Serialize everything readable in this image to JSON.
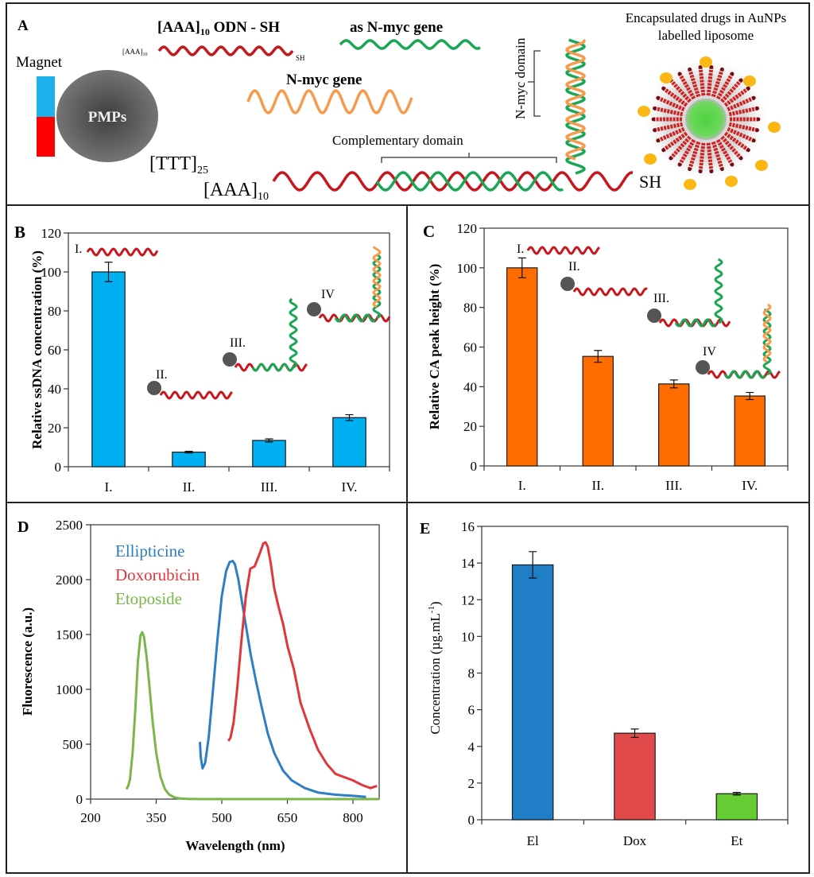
{
  "figure": {
    "panelA": {
      "label": "A",
      "title_odn": "[AAA]",
      "title_odn_sub": "10",
      "title_odn_rest": " ODN - SH",
      "small_odn_prefix": "[AAA]",
      "small_odn_sub": "10",
      "small_sh": "SH",
      "as_nmyc_label": "as N-myc gene",
      "nmyc_label": "N-myc gene",
      "magnet_label": "Magnet",
      "pmps_label": "PMPs",
      "ttt_label": "[TTT]",
      "ttt_sub": "25",
      "aaa_label": "[AAA]",
      "aaa_sub": "10",
      "complementary_label": "Complementary domain",
      "nmyc_domain_label": "N-myc domain",
      "sh_label": "SH",
      "liposome_label_line1": "Encapsulated drugs in AuNPs",
      "liposome_label_line2": "labelled liposome",
      "colors": {
        "red_strand": "#c8161d",
        "green_strand": "#1aa655",
        "orange_strand": "#f79a4b",
        "magnet_blue": "#1fb1ec",
        "magnet_red": "#ff0000",
        "pmp_gray": "#6b6b6b",
        "aunp_gold": "#fbb713",
        "core_green": "#4cd33f"
      }
    },
    "annotations": {
      "B": [
        "I.",
        "II.",
        "III.",
        "IV"
      ],
      "C": [
        "I.",
        "II.",
        "III.",
        "IV"
      ]
    }
  },
  "chart_data": [
    {
      "panel": "B",
      "type": "bar",
      "title": "",
      "categories": [
        "I.",
        "II.",
        "III.",
        "IV."
      ],
      "values": [
        100,
        7.5,
        13.5,
        25.2
      ],
      "errors": [
        5.0,
        0.4,
        0.8,
        1.5
      ],
      "xlabel": "",
      "ylabel": "Relative ssDNA concentration (%)",
      "ylim": [
        0,
        120
      ],
      "yticks": [
        0,
        20,
        40,
        60,
        80,
        100,
        120
      ],
      "bar_color": "#00b0f0",
      "grid": false
    },
    {
      "panel": "C",
      "type": "bar",
      "title": "",
      "categories": [
        "I.",
        "II.",
        "III.",
        "IV."
      ],
      "values": [
        100,
        55.3,
        41.4,
        35.3
      ],
      "errors": [
        5.0,
        3.0,
        2.0,
        1.8
      ],
      "xlabel": "",
      "ylabel": "Relative CA peak height (%)",
      "ylim": [
        0,
        120
      ],
      "yticks": [
        0,
        20,
        40,
        60,
        80,
        100,
        120
      ],
      "bar_color": "#ff6d00",
      "grid": false
    },
    {
      "panel": "D",
      "type": "line",
      "title": "",
      "xlabel": "Wavelength (nm)",
      "ylabel": "Fluorescence (a.u.)",
      "xlim": [
        200,
        860
      ],
      "ylim": [
        0,
        2500
      ],
      "xticks": [
        200,
        350,
        500,
        650,
        800
      ],
      "yticks": [
        0,
        500,
        1000,
        1500,
        2000,
        2500
      ],
      "legend": "top-left",
      "grid": false,
      "series": [
        {
          "name": "Ellipticine",
          "color": "#2e7ec4",
          "x": [
            450,
            452,
            456,
            462,
            470,
            480,
            490,
            500,
            510,
            518,
            525,
            530,
            538,
            546,
            556,
            566,
            578,
            590,
            605,
            620,
            640,
            660,
            690,
            720,
            760,
            800,
            830
          ],
          "y": [
            520,
            380,
            280,
            330,
            560,
            1000,
            1450,
            1850,
            2080,
            2160,
            2170,
            2140,
            2000,
            1800,
            1560,
            1320,
            1080,
            860,
            600,
            420,
            260,
            170,
            100,
            60,
            40,
            30,
            20
          ]
        },
        {
          "name": "Doxorubicin",
          "color": "#e0373d",
          "x": [
            515,
            520,
            527,
            535,
            545,
            555,
            565,
            575,
            585,
            595,
            600,
            605,
            612,
            620,
            630,
            640,
            650,
            665,
            680,
            700,
            720,
            740,
            760,
            780,
            800,
            820,
            840,
            855
          ],
          "y": [
            530,
            560,
            700,
            1000,
            1450,
            1850,
            2100,
            2120,
            2220,
            2330,
            2340,
            2300,
            2150,
            1920,
            1750,
            1600,
            1400,
            1180,
            880,
            650,
            450,
            320,
            230,
            200,
            170,
            130,
            100,
            120
          ]
        },
        {
          "name": "Etoposide",
          "color": "#7ab648",
          "x": [
            282,
            286,
            290,
            296,
            302,
            308,
            314,
            318,
            322,
            328,
            334,
            342,
            350,
            360,
            370,
            380,
            392,
            405,
            420,
            450,
            500,
            600,
            700,
            860
          ],
          "y": [
            90,
            120,
            180,
            420,
            800,
            1250,
            1490,
            1520,
            1480,
            1300,
            1050,
            700,
            420,
            200,
            90,
            40,
            15,
            5,
            2,
            0,
            0,
            0,
            0,
            0
          ]
        }
      ]
    },
    {
      "panel": "E",
      "type": "bar",
      "title": "",
      "categories": [
        "El",
        "Dox",
        "Et"
      ],
      "values": [
        13.9,
        4.72,
        1.42
      ],
      "errors": [
        0.72,
        0.23,
        0.07
      ],
      "colors": [
        "#1f7ec6",
        "#e04a4a",
        "#66cc33"
      ],
      "xlabel": "",
      "ylabel": "Concentration (µg.mL-1)",
      "ylabel_main": "Concentration (µg.mL",
      "ylabel_sup": "-1",
      "ylabel_end": ")",
      "ylim": [
        0,
        16
      ],
      "yticks": [
        0,
        2,
        4,
        6,
        8,
        10,
        12,
        14,
        16
      ],
      "grid": false
    }
  ]
}
